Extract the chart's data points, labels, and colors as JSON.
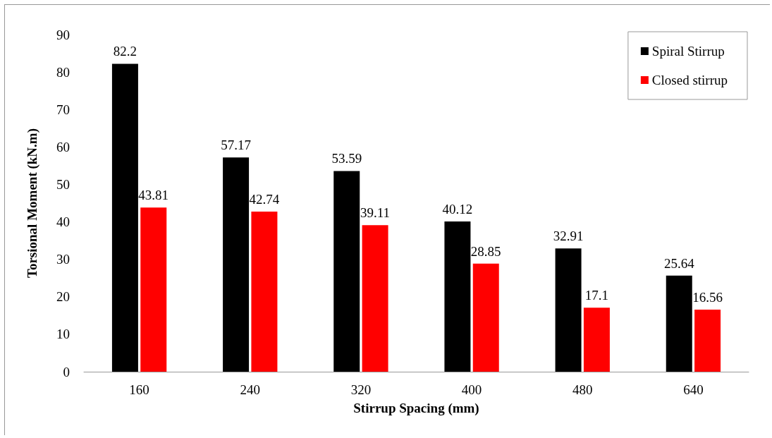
{
  "chart_data": {
    "type": "bar",
    "xlabel": "Stirrup Spacing (mm)",
    "ylabel": "Torsional Moment (kN.m)",
    "categories": [
      "160",
      "240",
      "320",
      "400",
      "480",
      "640"
    ],
    "series": [
      {
        "name": "Spiral Stirrup",
        "color": "#000000",
        "values": [
          82.2,
          57.17,
          53.59,
          40.12,
          32.91,
          25.64
        ]
      },
      {
        "name": "Closed stirrup",
        "color": "#ff0000",
        "values": [
          43.81,
          42.74,
          39.11,
          28.85,
          17.1,
          16.56
        ]
      }
    ],
    "ylim": [
      0,
      90
    ],
    "yticks": [
      0,
      10,
      20,
      30,
      40,
      50,
      60,
      70,
      80,
      90
    ],
    "data_labels": true,
    "grid": false,
    "legend": "top right"
  }
}
